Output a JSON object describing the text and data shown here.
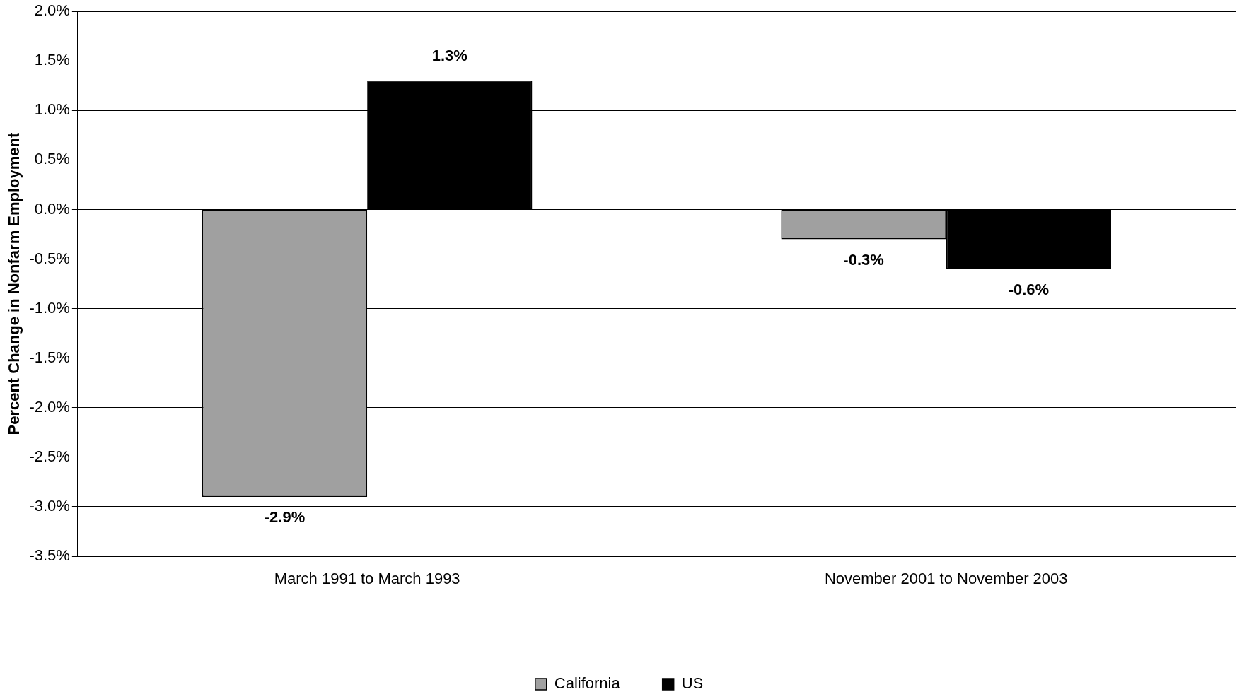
{
  "chart_data": {
    "type": "bar",
    "ylabel": "Percent Change in Nonfarm Employment",
    "categories": [
      "March 1991 to March 1993",
      "November 2001 to November 2003"
    ],
    "series": [
      {
        "name": "California",
        "color": "#a0a0a0",
        "values": [
          -2.9,
          -0.3
        ],
        "value_labels": [
          "-2.9%",
          "-0.3%"
        ]
      },
      {
        "name": "US",
        "color": "#000000",
        "values": [
          1.3,
          -0.6
        ],
        "value_labels": [
          "1.3%",
          "-0.6%"
        ]
      }
    ],
    "ylim": [
      -3.5,
      2.0
    ],
    "yticks": [
      {
        "value": -3.5,
        "label": "-3.5%"
      },
      {
        "value": -3.0,
        "label": "-3.0%"
      },
      {
        "value": -2.5,
        "label": "-2.5%"
      },
      {
        "value": -2.0,
        "label": "-2.0%"
      },
      {
        "value": -1.5,
        "label": "-1.5%"
      },
      {
        "value": -1.0,
        "label": "-1.0%"
      },
      {
        "value": -0.5,
        "label": "-0.5%"
      },
      {
        "value": 0,
        "label": "0.0%"
      },
      {
        "value": 0.5,
        "label": "0.5%"
      },
      {
        "value": 1.0,
        "label": "1.0%"
      },
      {
        "value": 1.5,
        "label": "1.5%"
      },
      {
        "value": 2.0,
        "label": "2.0%"
      }
    ],
    "grid": "y",
    "legend": "bottom"
  }
}
